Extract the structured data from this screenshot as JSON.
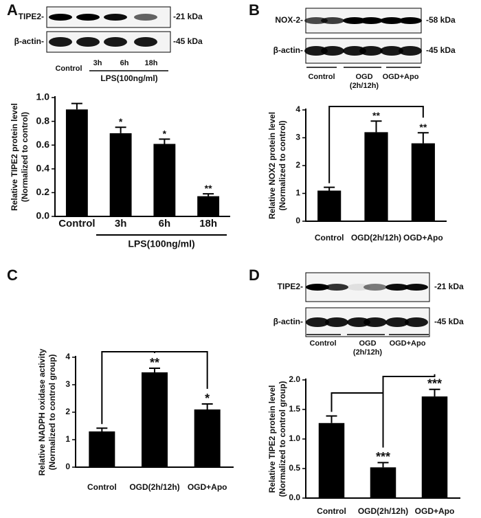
{
  "chart_data": [
    {
      "type": "bar",
      "panel": "A",
      "blot": {
        "rows": [
          "TIPE2-",
          "β-actin-"
        ],
        "sizes": [
          "-21 kDa",
          "-45 kDa"
        ],
        "lane_labels": [
          [
            "Control"
          ],
          [
            "3h"
          ],
          [
            "6h"
          ],
          [
            "18h"
          ]
        ],
        "group_label": "LPS(100ng/ml)"
      },
      "ylabel": [
        "Relative TIPE2 protein level",
        "(Normalized to control)"
      ],
      "categories": [
        "Control",
        "3h",
        "6h",
        "18h"
      ],
      "group_label": "LPS(100ng/ml)",
      "values": [
        0.9,
        0.7,
        0.61,
        0.17
      ],
      "errors": [
        0.05,
        0.05,
        0.04,
        0.02
      ],
      "annotations": [
        null,
        "*",
        "*",
        "**"
      ],
      "color": "#000000",
      "ylim": [
        0,
        1.0
      ],
      "yticks": [
        {
          "value": 0,
          "label": "0.0"
        },
        {
          "value": 0.2,
          "label": "0.2"
        },
        {
          "value": 0.4,
          "label": "0.4"
        },
        {
          "value": 0.6,
          "label": "0.6"
        },
        {
          "value": 0.8,
          "label": "0.8"
        },
        {
          "value": 1.0,
          "label": "1.0"
        }
      ]
    },
    {
      "type": "bar",
      "panel": "B",
      "blot": {
        "rows": [
          "NOX-2-",
          "β-actin-"
        ],
        "sizes": [
          "-58 kDa",
          "-45 kDa"
        ],
        "lane_labels": [
          [
            "Control"
          ],
          [
            "OGD",
            "(2h/12h)"
          ],
          [
            "OGD+Apo"
          ]
        ]
      },
      "ylabel": [
        "Relative NOX2 protein level",
        "(Normalized to control)"
      ],
      "categories": [
        "Control",
        "OGD(2h/12h)",
        "OGD+Apo"
      ],
      "values": [
        1.1,
        3.2,
        2.8
      ],
      "errors": [
        0.12,
        0.4,
        0.38
      ],
      "annotations": [
        null,
        "**",
        "**"
      ],
      "color": "#000000",
      "ylim": [
        0,
        4
      ],
      "yticks": [
        0,
        1,
        2,
        3,
        4
      ]
    },
    {
      "type": "bar",
      "panel": "C",
      "ylabel": [
        "Relative NADPH oxidase activity",
        "(Normalized to control group)"
      ],
      "categories": [
        "Control",
        "OGD(2h/12h)",
        "OGD+Apo"
      ],
      "values": [
        1.3,
        3.45,
        2.1
      ],
      "errors": [
        0.12,
        0.15,
        0.2
      ],
      "annotations": [
        null,
        "**",
        "*"
      ],
      "color": "#000000",
      "ylim": [
        0,
        4
      ],
      "yticks": [
        0,
        1,
        2,
        3,
        4
      ]
    },
    {
      "type": "bar",
      "panel": "D",
      "blot": {
        "rows": [
          "TIPE2-",
          "β-actin-"
        ],
        "sizes": [
          "-21 kDa",
          "-45 kDa"
        ],
        "lane_labels": [
          [
            "Control"
          ],
          [
            "OGD",
            "(2h/12h)"
          ],
          [
            "OGD+Apo"
          ]
        ]
      },
      "ylabel": [
        "Relative TIPE2 protein level",
        "(Normalized to control group)"
      ],
      "categories": [
        "Control",
        "OGD(2h/12h)",
        "OGD+Apo"
      ],
      "values": [
        1.27,
        0.52,
        1.72
      ],
      "errors": [
        0.12,
        0.08,
        0.12
      ],
      "annotations": [
        null,
        "***",
        "***"
      ],
      "color": "#000000",
      "ylim": [
        0,
        2.0
      ],
      "yticks": [
        {
          "value": 0,
          "label": "0.0"
        },
        0.5,
        {
          "value": 1,
          "label": "1.0"
        },
        1.5,
        {
          "value": 2,
          "label": "2.0"
        }
      ]
    }
  ]
}
